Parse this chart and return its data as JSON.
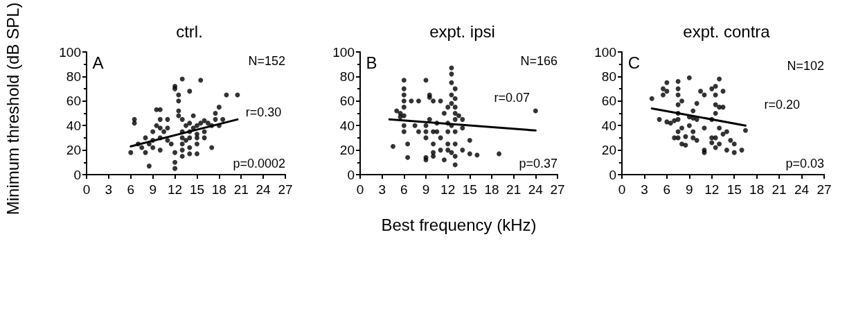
{
  "chart_data": [
    {
      "type": "scatter",
      "title": "ctrl.",
      "ylabel": "Minimum threshold (dB SPL)",
      "xlim": [
        0,
        27
      ],
      "ylim": [
        0,
        100
      ],
      "xticks": [
        0,
        3,
        6,
        9,
        12,
        15,
        18,
        21,
        24,
        27
      ],
      "yticks": [
        0,
        20,
        40,
        60,
        80,
        100
      ],
      "grid": false,
      "annotations": [
        "A",
        "N=152",
        "r=0.30",
        "p=0.0002"
      ],
      "series": [
        {
          "marker": "circle",
          "color": "#000000",
          "x": [
            6,
            6.5,
            6.5,
            7,
            7.5,
            8,
            8,
            8.5,
            8.5,
            9,
            9,
            9,
            9.5,
            9.5,
            10,
            10,
            10,
            10,
            10.5,
            11,
            11,
            11.5,
            12,
            12,
            12,
            12,
            12,
            12.5,
            12.5,
            12.5,
            12.5,
            13,
            13,
            13,
            13,
            13,
            13,
            13,
            13.5,
            13.5,
            14,
            14,
            14,
            14,
            14,
            14.5,
            14.5,
            15,
            15,
            15,
            15,
            15.5,
            15.5,
            16,
            16,
            16,
            17,
            17,
            17.5,
            17.5,
            18,
            18,
            18.5,
            19,
            20.5,
            11,
            10,
            14,
            15,
            16.5
          ],
          "values": [
            18,
            42,
            45,
            25,
            22,
            30,
            18,
            7,
            25,
            35,
            28,
            22,
            40,
            53,
            53,
            38,
            30,
            20,
            35,
            45,
            28,
            25,
            10,
            5,
            18,
            72,
            70,
            65,
            60,
            52,
            48,
            78,
            45,
            35,
            30,
            25,
            20,
            15,
            40,
            28,
            68,
            42,
            30,
            22,
            17,
            38,
            48,
            40,
            30,
            25,
            17,
            77,
            42,
            44,
            35,
            30,
            22,
            40,
            45,
            50,
            40,
            55,
            45,
            65,
            65,
            38,
            45,
            35,
            33,
            42
          ]
        },
        {
          "type": "line",
          "marker": "none",
          "color": "#000000",
          "x": [
            6,
            20.5
          ],
          "values": [
            23,
            45
          ]
        }
      ]
    },
    {
      "type": "scatter",
      "title": "expt. ipsi",
      "xlabel": "Best frequency (kHz)",
      "xlim": [
        0,
        27
      ],
      "ylim": [
        0,
        100
      ],
      "xticks": [
        0,
        3,
        6,
        9,
        12,
        15,
        18,
        21,
        24,
        27
      ],
      "yticks": [
        0,
        20,
        40,
        60,
        80,
        100
      ],
      "grid": false,
      "annotations": [
        "B",
        "N=166",
        "r=0.07",
        "p=0.37"
      ],
      "series": [
        {
          "marker": "circle",
          "color": "#000000",
          "x": [
            4.5,
            5,
            5.5,
            5.5,
            6,
            6,
            6,
            6,
            6,
            6,
            6,
            6,
            6.5,
            6.5,
            7,
            8,
            9,
            9,
            9,
            9,
            9,
            9,
            9.5,
            9.5,
            9.5,
            10,
            10,
            10,
            10,
            10,
            10.5,
            10.5,
            11,
            11,
            11,
            11.5,
            12,
            12,
            12,
            12,
            12,
            12.5,
            12.5,
            12.5,
            12.5,
            12.5,
            12.5,
            12.5,
            13,
            13,
            13,
            13,
            13,
            13,
            13,
            13,
            13,
            13.5,
            14,
            14,
            14,
            15,
            15,
            16,
            19,
            24,
            8,
            11.5,
            7.5
          ],
          "values": [
            23,
            52,
            50,
            47,
            77,
            70,
            65,
            60,
            55,
            48,
            40,
            35,
            25,
            14,
            60,
            60,
            77,
            14,
            12,
            30,
            35,
            40,
            63,
            65,
            45,
            60,
            35,
            25,
            18,
            15,
            35,
            42,
            60,
            30,
            20,
            50,
            55,
            42,
            35,
            25,
            20,
            87,
            82,
            75,
            65,
            58,
            40,
            18,
            70,
            62,
            55,
            50,
            45,
            35,
            25,
            15,
            8,
            48,
            45,
            38,
            20,
            28,
            17,
            16,
            17,
            52,
            35,
            12,
            40
          ]
        },
        {
          "type": "line",
          "marker": "none",
          "color": "#000000",
          "x": [
            4,
            24
          ],
          "values": [
            45,
            36
          ]
        }
      ]
    },
    {
      "type": "scatter",
      "title": "expt. contra",
      "xlim": [
        0,
        27
      ],
      "ylim": [
        0,
        100
      ],
      "xticks": [
        0,
        3,
        6,
        9,
        12,
        15,
        18,
        21,
        24,
        27
      ],
      "yticks": [
        0,
        20,
        40,
        60,
        80,
        100
      ],
      "grid": false,
      "annotations": [
        "C",
        "N=102",
        "r=0.20",
        "p=0.03"
      ],
      "series": [
        {
          "marker": "circle",
          "color": "#000000",
          "x": [
            4,
            5,
            5.5,
            5.5,
            6,
            6,
            6,
            6.5,
            7,
            7,
            7.5,
            7.5,
            7.5,
            7.5,
            7.5,
            7.5,
            7.5,
            7.5,
            8,
            8,
            8,
            8.5,
            8.5,
            9,
            9,
            9,
            9.5,
            9.5,
            9.5,
            9.5,
            10,
            10,
            10,
            10.5,
            11,
            11,
            11,
            11,
            12,
            12,
            12,
            12,
            12.5,
            12.5,
            12.5,
            12.5,
            12.5,
            12.5,
            13,
            13,
            13,
            13,
            13.5,
            13.5,
            13.5,
            14,
            14,
            14.5,
            15,
            15,
            16,
            16.5
          ],
          "values": [
            62,
            45,
            70,
            65,
            75,
            68,
            43,
            42,
            44,
            30,
            76,
            70,
            65,
            57,
            50,
            45,
            35,
            30,
            60,
            38,
            25,
            31,
            24,
            47,
            40,
            79,
            52,
            46,
            35,
            30,
            58,
            45,
            28,
            68,
            65,
            38,
            20,
            18,
            70,
            45,
            30,
            26,
            72,
            65,
            57,
            50,
            30,
            22,
            78,
            55,
            38,
            25,
            68,
            55,
            33,
            20,
            35,
            28,
            25,
            18,
            20,
            36
          ]
        },
        {
          "type": "line",
          "marker": "none",
          "color": "#000000",
          "x": [
            4,
            16.5
          ],
          "values": [
            54,
            40
          ]
        }
      ]
    }
  ]
}
